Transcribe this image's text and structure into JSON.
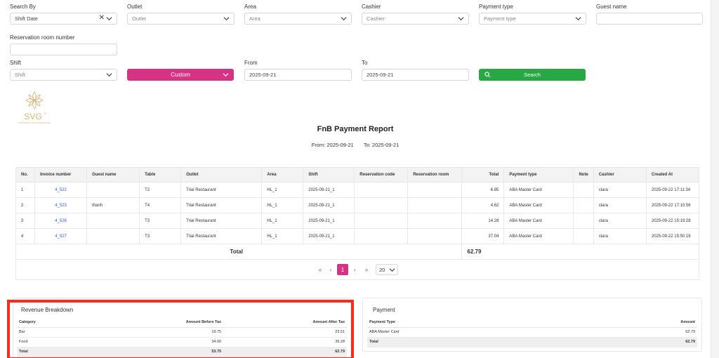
{
  "filters": {
    "search_by": {
      "label": "Search By",
      "value": "Shift Date",
      "clear": "✕"
    },
    "outlet": {
      "label": "Outlet",
      "placeholder": "Outlet"
    },
    "area": {
      "label": "Area",
      "placeholder": "Area"
    },
    "cashier": {
      "label": "Cashier",
      "placeholder": "Cashier"
    },
    "payment_type": {
      "label": "Payment type",
      "placeholder": "Payment type"
    },
    "guest_name": {
      "label": "Guest name",
      "value": ""
    },
    "reservation_room": {
      "label": "Reservation room number",
      "value": ""
    },
    "shift": {
      "label": "Shift",
      "placeholder": "Shift"
    },
    "custom_button": "Custom",
    "from": {
      "label": "From",
      "value": "2025-09-21"
    },
    "to": {
      "label": "To",
      "value": "2025-09-21"
    },
    "search_button": "Search"
  },
  "logo": {
    "text": "SVG",
    "mark": "®",
    "subtitle": "THE SHADES VILLAS & RESIDENCES"
  },
  "report": {
    "title": "FnB Payment Report",
    "from": "From: 2025-09-21",
    "to": "To: 2025-09-21"
  },
  "table": {
    "columns": [
      "No.",
      "Invoice number",
      "Guest name",
      "Table",
      "Outlet",
      "Area",
      "Shift",
      "Reservation code",
      "Reservation room",
      "Total",
      "Payment type",
      "Note",
      "Cashier",
      "Created At"
    ],
    "rows": [
      [
        "1",
        "4_522",
        "",
        "T2",
        "Trial Restaurant",
        "HL_1",
        "2025-09-21_1",
        "",
        "",
        "6.85",
        "ABA Master Card",
        "",
        "clara",
        "2025-09-22 17:11:34"
      ],
      [
        "2",
        "4_523",
        "thanh",
        "T4",
        "Trial Restaurant",
        "HL_1",
        "2025-09-21_1",
        "",
        "",
        "4.62",
        "ABA Master Card",
        "",
        "clara",
        "2025-09-22 17:10:56"
      ],
      [
        "3",
        "4_526",
        "",
        "T3",
        "Trial Restaurant",
        "HL_1",
        "2025-09-21_1",
        "",
        "",
        "14.28",
        "ABA Master Card",
        "",
        "clara",
        "2025-09-22 15:19:28"
      ],
      [
        "4",
        "4_527",
        "",
        "T3",
        "Trial Restaurant",
        "HL_1",
        "2025-09-21_1",
        "",
        "",
        "37.04",
        "ABA Master Card",
        "",
        "clara",
        "2025-09-22 15:50:18"
      ]
    ],
    "total_label": "Total",
    "total_value": "62.79"
  },
  "pagination": {
    "first": "«",
    "prev": "‹",
    "current": "1",
    "next": "›",
    "last": "»",
    "page_size": "20"
  },
  "revenue": {
    "title": "Revenue Breakdown",
    "columns": [
      "Category",
      "Amount Before Tax",
      "Amount After Tax"
    ],
    "rows": [
      [
        "Bar",
        "19.75",
        "23.51"
      ],
      [
        "Food",
        "34.00",
        "39.28"
      ]
    ],
    "total": [
      "Total",
      "53.75",
      "62.79"
    ]
  },
  "payment": {
    "title": "Payment",
    "columns": [
      "Payment Type",
      "Amount"
    ],
    "rows": [
      [
        "ABA Master Card",
        "62.79"
      ]
    ],
    "total": [
      "Total",
      "62.79"
    ]
  },
  "colors": {
    "accent": "#d63384",
    "search": "#28a745",
    "highlight": "#ff2a1a",
    "link": "#2f5bd5"
  }
}
